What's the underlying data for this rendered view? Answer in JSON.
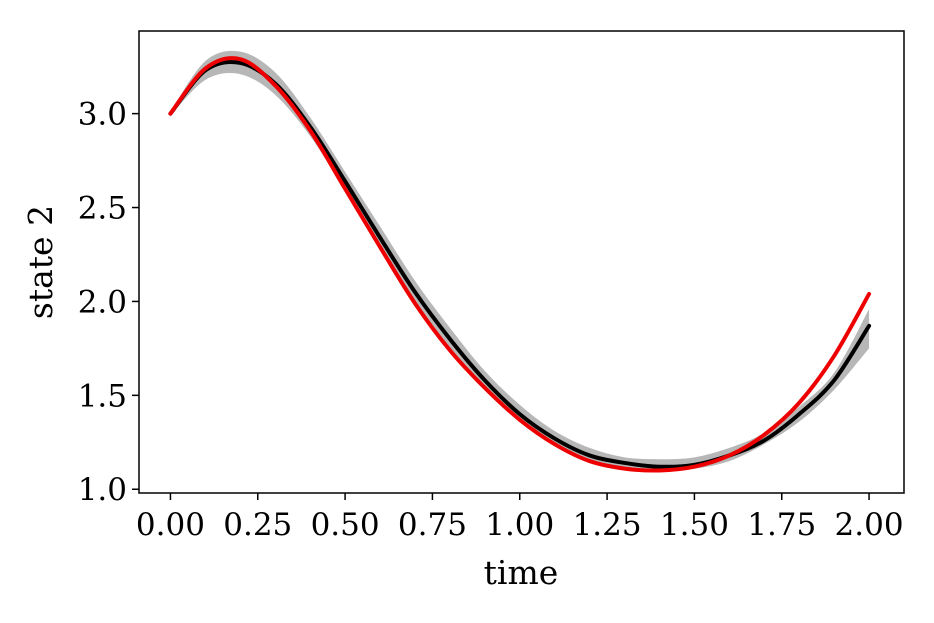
{
  "chart_data": {
    "type": "line",
    "xlabel": "time",
    "ylabel": "state 2",
    "xlim": [
      -0.09,
      2.1
    ],
    "ylim": [
      0.98,
      3.44
    ],
    "xticks": [
      0.0,
      0.25,
      0.5,
      0.75,
      1.0,
      1.25,
      1.5,
      1.75,
      2.0
    ],
    "xtick_labels": [
      "0.00",
      "0.25",
      "0.50",
      "0.75",
      "1.00",
      "1.25",
      "1.50",
      "1.75",
      "2.00"
    ],
    "yticks": [
      1.0,
      1.5,
      2.0,
      2.5,
      3.0
    ],
    "ytick_labels": [
      "1.0",
      "1.5",
      "2.0",
      "2.5",
      "3.0"
    ],
    "grid": false,
    "band": {
      "color": "#aaaaaa",
      "x": [
        0.0,
        0.1,
        0.2,
        0.3,
        0.4,
        0.5,
        0.6,
        0.7,
        0.8,
        0.9,
        1.0,
        1.1,
        1.2,
        1.3,
        1.4,
        1.5,
        1.6,
        1.7,
        1.8,
        1.9,
        2.0
      ],
      "lower": [
        2.99,
        3.18,
        3.21,
        3.1,
        2.88,
        2.59,
        2.28,
        1.99,
        1.74,
        1.53,
        1.36,
        1.23,
        1.15,
        1.11,
        1.1,
        1.11,
        1.15,
        1.24,
        1.36,
        1.53,
        1.75
      ],
      "upper": [
        3.01,
        3.28,
        3.33,
        3.22,
        2.98,
        2.69,
        2.4,
        2.11,
        1.86,
        1.63,
        1.45,
        1.31,
        1.22,
        1.17,
        1.16,
        1.17,
        1.22,
        1.3,
        1.44,
        1.62,
        1.96
      ]
    },
    "series": [
      {
        "color": "#000000",
        "x": [
          0.0,
          0.1,
          0.2,
          0.3,
          0.4,
          0.5,
          0.6,
          0.7,
          0.8,
          0.9,
          1.0,
          1.1,
          1.2,
          1.3,
          1.4,
          1.5,
          1.6,
          1.7,
          1.8,
          1.9,
          2.0
        ],
        "values": [
          3.0,
          3.23,
          3.27,
          3.16,
          2.93,
          2.64,
          2.34,
          2.05,
          1.8,
          1.58,
          1.4,
          1.27,
          1.18,
          1.14,
          1.12,
          1.13,
          1.18,
          1.26,
          1.4,
          1.58,
          1.87
        ]
      },
      {
        "color": "#ee0000",
        "x": [
          0.0,
          0.1,
          0.2,
          0.3,
          0.4,
          0.5,
          0.6,
          0.7,
          0.8,
          0.9,
          1.0,
          1.1,
          1.2,
          1.3,
          1.4,
          1.5,
          1.6,
          1.7,
          1.8,
          1.9,
          2.0
        ],
        "values": [
          3.0,
          3.24,
          3.29,
          3.15,
          2.91,
          2.6,
          2.29,
          1.99,
          1.74,
          1.54,
          1.37,
          1.24,
          1.15,
          1.11,
          1.1,
          1.12,
          1.18,
          1.29,
          1.46,
          1.71,
          2.04
        ]
      }
    ]
  }
}
